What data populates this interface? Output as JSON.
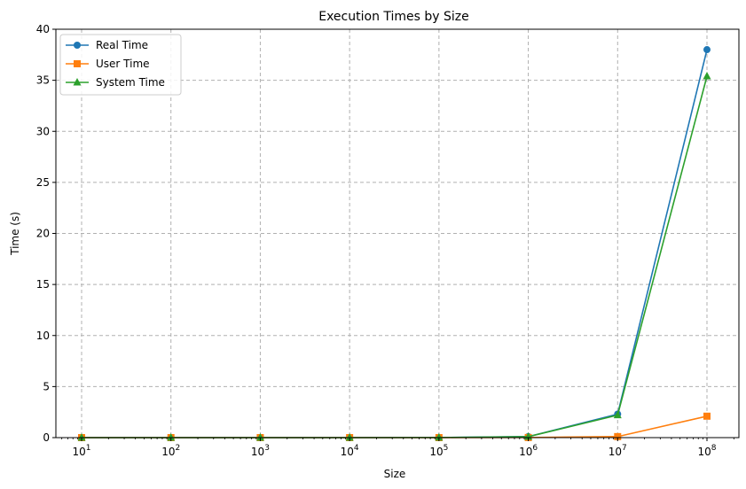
{
  "chart_data": {
    "type": "line",
    "title": "Execution Times by Size",
    "xlabel": "Size",
    "ylabel": "Time (s)",
    "xscale": "log",
    "xlim": [
      10,
      100000000
    ],
    "ylim": [
      0,
      40
    ],
    "grid": true,
    "legend_position": "top-left",
    "x": [
      10,
      100,
      1000,
      10000,
      100000,
      1000000,
      10000000,
      100000000
    ],
    "x_tick_labels": [
      {
        "base": "10",
        "exp": "1"
      },
      {
        "base": "10",
        "exp": "2"
      },
      {
        "base": "10",
        "exp": "3"
      },
      {
        "base": "10",
        "exp": "4"
      },
      {
        "base": "10",
        "exp": "5"
      },
      {
        "base": "10",
        "exp": "6"
      },
      {
        "base": "10",
        "exp": "7"
      },
      {
        "base": "10",
        "exp": "8"
      }
    ],
    "y_ticks": [
      "0",
      "5",
      "10",
      "15",
      "20",
      "25",
      "30",
      "35",
      "40"
    ],
    "series": [
      {
        "name": "Real Time",
        "color": "#1f77b4",
        "marker": "circle",
        "values": [
          0.0,
          0.0,
          0.0,
          0.0,
          0.01,
          0.1,
          2.3,
          38.0
        ]
      },
      {
        "name": "User Time",
        "color": "#ff7f0e",
        "marker": "square",
        "values": [
          0.0,
          0.0,
          0.0,
          0.0,
          0.0,
          0.01,
          0.1,
          2.1
        ]
      },
      {
        "name": "System Time",
        "color": "#2ca02c",
        "marker": "triangle",
        "values": [
          0.0,
          0.0,
          0.0,
          0.0,
          0.01,
          0.09,
          2.2,
          35.4
        ]
      }
    ]
  }
}
